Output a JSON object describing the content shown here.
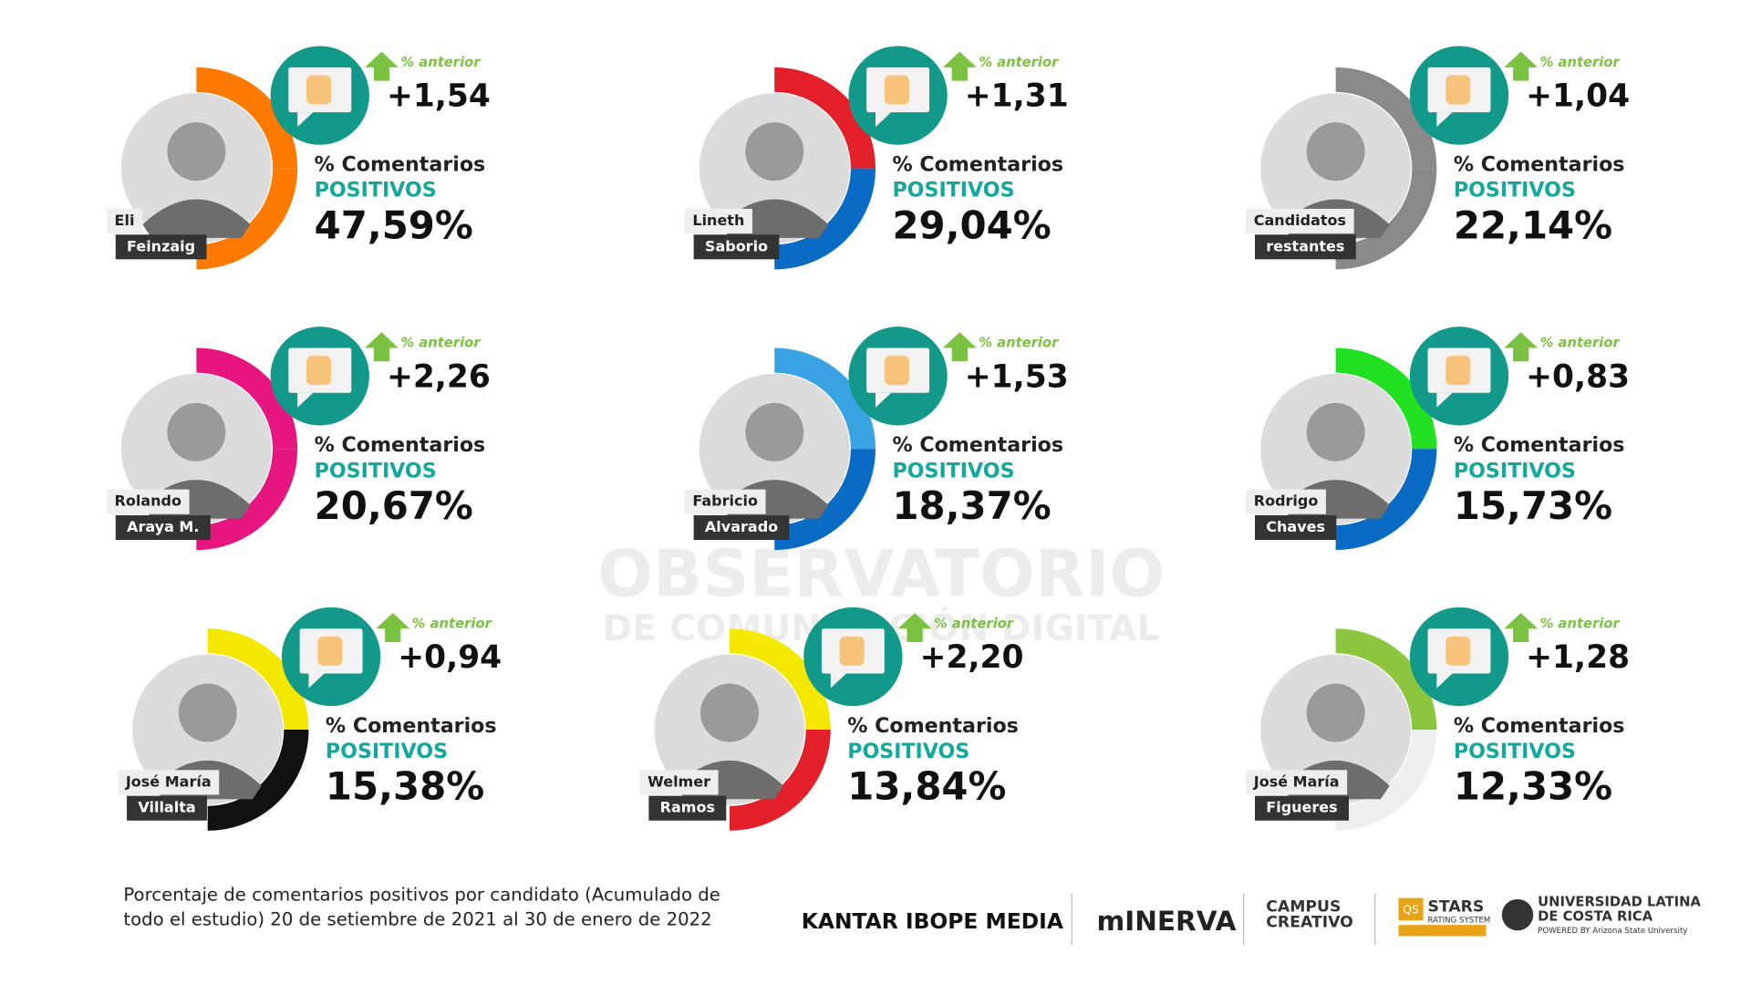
{
  "watermark": {
    "line1": "OBSERVATORIO",
    "line2": "DE COMUNICACIÓN DIGITAL"
  },
  "cards": [
    {
      "first": "Eli",
      "last": "Feinzaig",
      "change_label": "% anterior",
      "change": "+1,54",
      "label_top": "% Comentarios",
      "label_bottom": "POSITIVOS",
      "value": "47,59%",
      "colors": [
        "#ff7a00",
        "#ff7a00"
      ]
    },
    {
      "first": "Lineth",
      "last": "Saborio",
      "change_label": "% anterior",
      "change": "+1,31",
      "label_top": "% Comentarios",
      "label_bottom": "POSITIVOS",
      "value": "29,04%",
      "colors": [
        "#e3202a",
        "#0a6bc4"
      ]
    },
    {
      "first": "Candidatos",
      "last": "restantes",
      "change_label": "% anterior",
      "change": "+1,04",
      "label_top": "% Comentarios",
      "label_bottom": "POSITIVOS",
      "value": "22,14%",
      "colors": [
        "#8a8a8a",
        "#8a8a8a"
      ]
    },
    {
      "first": "Rolando",
      "last": "Araya M.",
      "change_label": "% anterior",
      "change": "+2,26",
      "label_top": "% Comentarios",
      "label_bottom": "POSITIVOS",
      "value": "20,67%",
      "colors": [
        "#e6157f",
        "#e6157f"
      ]
    },
    {
      "first": "Fabricio",
      "last": "Alvarado",
      "change_label": "% anterior",
      "change": "+1,53",
      "label_top": "% Comentarios",
      "label_bottom": "POSITIVOS",
      "value": "18,37%",
      "colors": [
        "#3aa3e3",
        "#0a6bc4"
      ]
    },
    {
      "first": "Rodrigo",
      "last": "Chaves",
      "change_label": "% anterior",
      "change": "+0,83",
      "label_top": "% Comentarios",
      "label_bottom": "POSITIVOS",
      "value": "15,73%",
      "colors": [
        "#22e022",
        "#0a6bc4"
      ]
    },
    {
      "first": "José María",
      "last": "Villalta",
      "change_label": "% anterior",
      "change": "+0,94",
      "label_top": "% Comentarios",
      "label_bottom": "POSITIVOS",
      "value": "15,38%",
      "colors": [
        "#f5e800",
        "#111111"
      ]
    },
    {
      "first": "Welmer",
      "last": "Ramos",
      "change_label": "% anterior",
      "change": "+2,20",
      "label_top": "% Comentarios",
      "label_bottom": "POSITIVOS",
      "value": "13,84%",
      "colors": [
        "#f5e800",
        "#e3202a"
      ]
    },
    {
      "first": "José María",
      "last": "Figueres",
      "change_label": "% anterior",
      "change": "+1,28",
      "label_top": "% Comentarios",
      "label_bottom": "POSITIVOS",
      "value": "12,33%",
      "colors": [
        "#8cc63f",
        "#eeeeee"
      ]
    }
  ],
  "footer": {
    "caption": [
      "Porcentaje de comentarios positivos por candidato (Acumulado de",
      "todo el estudio) 20 de setiembre de 2021 al 30 de enero de 2022"
    ],
    "logos": [
      "KANTAR IBOPE MEDIA",
      "mINERVA",
      "CAMPUS",
      "CREATIVO",
      "QS",
      "STARS",
      "RATING SYSTEM",
      "UNIVERSIDAD LATINA",
      "DE COSTA RICA",
      "POWERED BY Arizona State University"
    ]
  }
}
